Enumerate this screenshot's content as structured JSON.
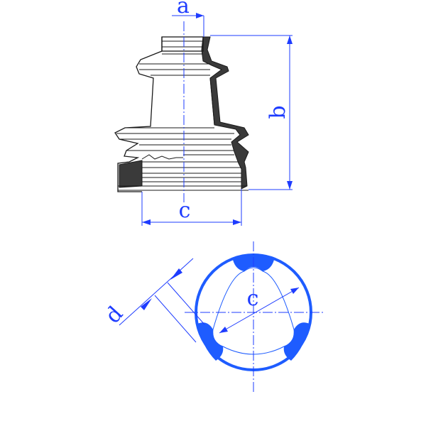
{
  "colors": {
    "dimension": "#1e3cff",
    "center_line": "#1e3cff",
    "section": "#1e5cff",
    "outline": "#1a1a1a"
  },
  "labels": {
    "a": "a",
    "b": "b",
    "c_side": "c",
    "c_top": "c",
    "d": "d"
  }
}
